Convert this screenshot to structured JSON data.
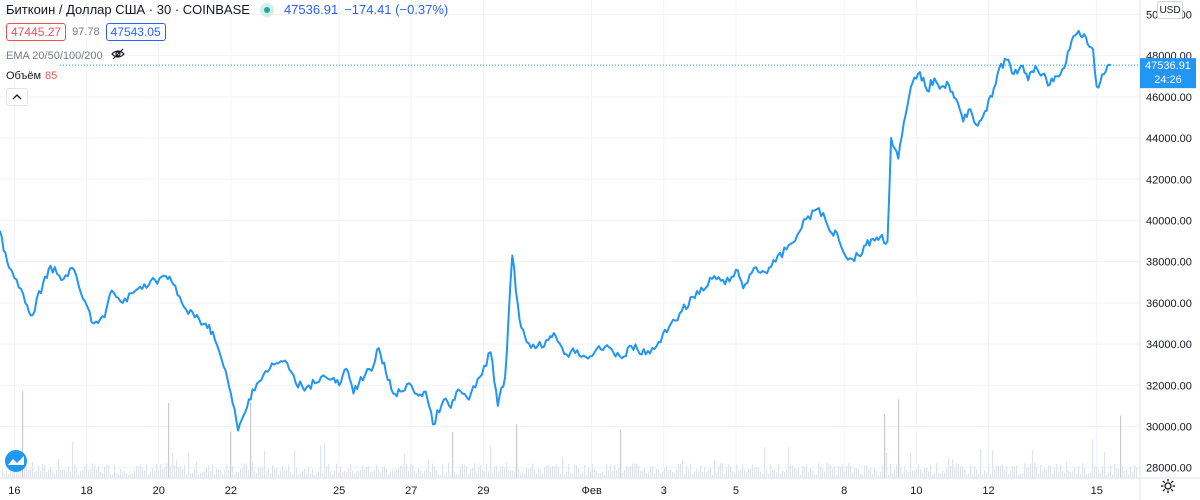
{
  "header": {
    "symbol": "Биткоин / Доллар США · 30 · COINBASE",
    "last_price": "47536.91",
    "change": "−174.41 (−0.37%)",
    "bid": "47445.27",
    "spread": "97.78",
    "ask": "47543.05",
    "ema": "EMA 20/50/100/200",
    "volume_label": "Объём",
    "volume_value": "85",
    "currency_button": "USD",
    "collapse_icon": "chevron-up-icon",
    "eye_icon": "eye-off-icon",
    "logo_icon": "tradingview-logo-icon",
    "settings_icon": "gear-icon"
  },
  "price_label": {
    "value": "47536.91",
    "countdown": "24:26"
  },
  "colors": {
    "line": "#2196f3",
    "volume": "#e0e3eb",
    "volume_spike": "#c8cbd2",
    "price_box": "#2196f3"
  },
  "chart_data": {
    "type": "line",
    "title": "Биткоин / Доллар США · 30 · COINBASE",
    "yaxis": {
      "ticks": [
        "28000.00",
        "30000.00",
        "32000.00",
        "34000.00",
        "36000.00",
        "38000.00",
        "40000.00",
        "42000.00",
        "44000.00",
        "46000.00",
        "48000.00",
        "50000.00"
      ],
      "ylim": [
        27500,
        50700
      ]
    },
    "xaxis": {
      "ticks": [
        {
          "label": "16",
          "day": 16
        },
        {
          "label": "18",
          "day": 18
        },
        {
          "label": "20",
          "day": 20
        },
        {
          "label": "22",
          "day": 22
        },
        {
          "label": "25",
          "day": 25
        },
        {
          "label": "27",
          "day": 27
        },
        {
          "label": "29",
          "day": 29
        },
        {
          "label": "Фев",
          "day": 32
        },
        {
          "label": "3",
          "day": 34
        },
        {
          "label": "5",
          "day": 36
        },
        {
          "label": "8",
          "day": 39
        },
        {
          "label": "10",
          "day": 41
        },
        {
          "label": "12",
          "day": 43
        },
        {
          "label": "15",
          "day": 46
        }
      ],
      "xlim": [
        15.6,
        47.2
      ]
    },
    "series": [
      {
        "values": [
          [
            15.6,
            39500
          ],
          [
            15.8,
            38000
          ],
          [
            16.0,
            37200
          ],
          [
            16.3,
            36000
          ],
          [
            16.5,
            35400
          ],
          [
            16.8,
            37000
          ],
          [
            17.0,
            37800
          ],
          [
            17.3,
            37100
          ],
          [
            17.6,
            37700
          ],
          [
            17.9,
            36200
          ],
          [
            18.2,
            35000
          ],
          [
            18.5,
            35300
          ],
          [
            18.7,
            36600
          ],
          [
            19.0,
            36000
          ],
          [
            19.3,
            36500
          ],
          [
            19.6,
            36900
          ],
          [
            19.9,
            37100
          ],
          [
            20.2,
            37300
          ],
          [
            20.4,
            36900
          ],
          [
            20.7,
            35800
          ],
          [
            21.0,
            35300
          ],
          [
            21.3,
            35000
          ],
          [
            21.5,
            34600
          ],
          [
            21.8,
            32900
          ],
          [
            22.0,
            31600
          ],
          [
            22.2,
            29800
          ],
          [
            22.4,
            30700
          ],
          [
            22.6,
            31800
          ],
          [
            22.9,
            32500
          ],
          [
            23.2,
            33000
          ],
          [
            23.5,
            33200
          ],
          [
            23.8,
            32100
          ],
          [
            24.1,
            31900
          ],
          [
            24.5,
            32400
          ],
          [
            24.8,
            32300
          ],
          [
            25.0,
            32000
          ],
          [
            25.2,
            32800
          ],
          [
            25.4,
            31600
          ],
          [
            25.6,
            32400
          ],
          [
            25.9,
            32700
          ],
          [
            26.1,
            33800
          ],
          [
            26.3,
            32600
          ],
          [
            26.5,
            31600
          ],
          [
            26.7,
            31700
          ],
          [
            27.0,
            32000
          ],
          [
            27.2,
            31500
          ],
          [
            27.4,
            31700
          ],
          [
            27.6,
            30100
          ],
          [
            27.9,
            31300
          ],
          [
            28.1,
            30900
          ],
          [
            28.3,
            31800
          ],
          [
            28.6,
            31300
          ],
          [
            28.9,
            32400
          ],
          [
            29.2,
            33600
          ],
          [
            29.4,
            31000
          ],
          [
            29.6,
            32400
          ],
          [
            29.8,
            38300
          ],
          [
            30.0,
            35200
          ],
          [
            30.2,
            34100
          ],
          [
            30.5,
            33900
          ],
          [
            30.8,
            34200
          ],
          [
            31.0,
            34400
          ],
          [
            31.3,
            33500
          ],
          [
            31.6,
            33700
          ],
          [
            31.9,
            33300
          ],
          [
            32.2,
            33900
          ],
          [
            32.6,
            33600
          ],
          [
            32.9,
            33400
          ],
          [
            33.1,
            33900
          ],
          [
            33.5,
            33500
          ],
          [
            33.8,
            33900
          ],
          [
            34.2,
            35000
          ],
          [
            34.5,
            35600
          ],
          [
            34.8,
            36300
          ],
          [
            35.1,
            36600
          ],
          [
            35.4,
            37300
          ],
          [
            35.7,
            36900
          ],
          [
            36.0,
            37600
          ],
          [
            36.2,
            36700
          ],
          [
            36.5,
            37700
          ],
          [
            36.8,
            37500
          ],
          [
            37.1,
            38000
          ],
          [
            37.4,
            38600
          ],
          [
            37.7,
            39300
          ],
          [
            38.0,
            40200
          ],
          [
            38.3,
            40600
          ],
          [
            38.6,
            39500
          ],
          [
            38.8,
            39400
          ],
          [
            39.1,
            38100
          ],
          [
            39.4,
            38300
          ],
          [
            39.6,
            38800
          ],
          [
            39.8,
            39100
          ],
          [
            40.0,
            39200
          ],
          [
            40.2,
            39000
          ],
          [
            40.3,
            44000
          ],
          [
            40.4,
            43500
          ],
          [
            40.5,
            43000
          ],
          [
            40.7,
            45100
          ],
          [
            40.9,
            46700
          ],
          [
            41.1,
            47200
          ],
          [
            41.3,
            46300
          ],
          [
            41.5,
            46900
          ],
          [
            41.7,
            46500
          ],
          [
            41.9,
            46600
          ],
          [
            42.1,
            45900
          ],
          [
            42.3,
            44800
          ],
          [
            42.5,
            45400
          ],
          [
            42.7,
            44600
          ],
          [
            42.9,
            45300
          ],
          [
            43.1,
            46000
          ],
          [
            43.3,
            47400
          ],
          [
            43.5,
            47800
          ],
          [
            43.7,
            47100
          ],
          [
            43.9,
            47500
          ],
          [
            44.1,
            46800
          ],
          [
            44.3,
            47500
          ],
          [
            44.5,
            47100
          ],
          [
            44.7,
            46600
          ],
          [
            44.9,
            47000
          ],
          [
            45.1,
            47400
          ],
          [
            45.3,
            48700
          ],
          [
            45.5,
            49200
          ],
          [
            45.7,
            48900
          ],
          [
            45.9,
            48300
          ],
          [
            46.0,
            46500
          ],
          [
            46.2,
            47100
          ],
          [
            46.4,
            47536.91
          ]
        ]
      }
    ]
  }
}
